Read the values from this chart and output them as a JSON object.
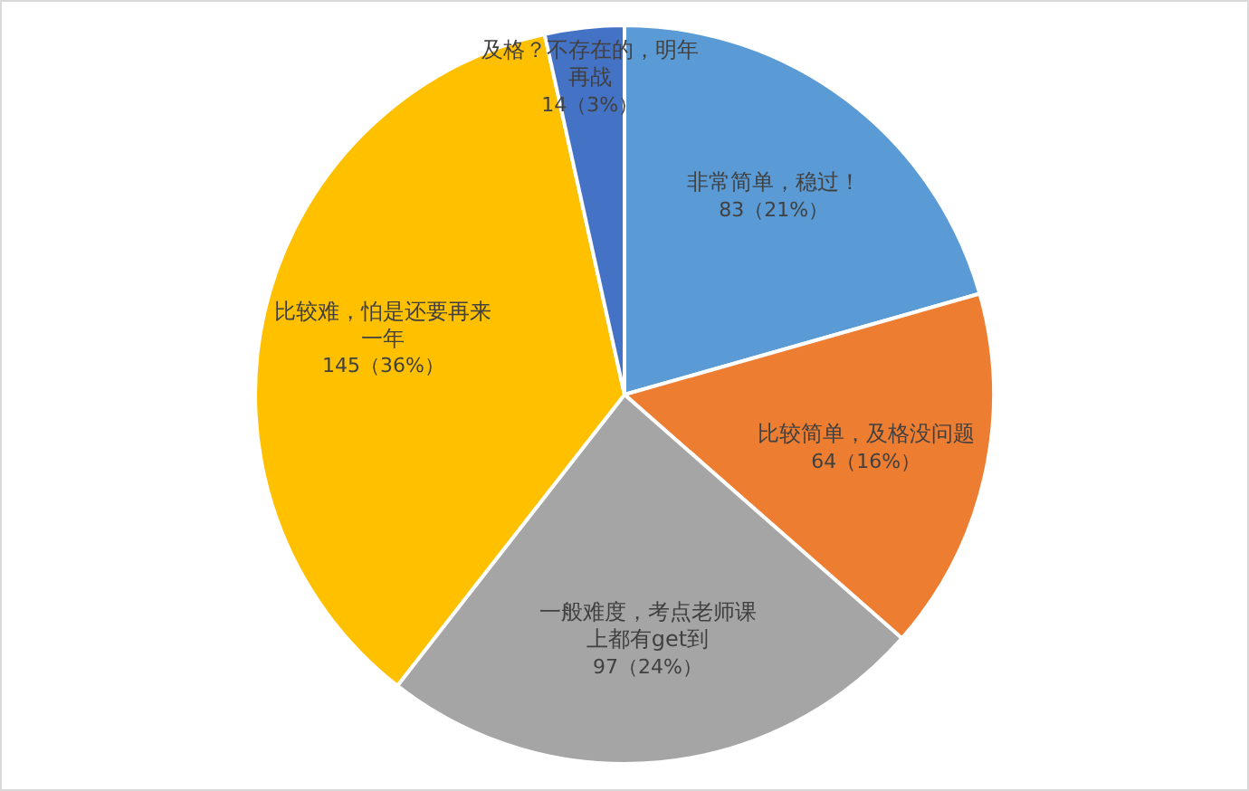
{
  "chart_data": {
    "type": "pie",
    "categories": [
      "非常简单，稳过！",
      "比较简单，及格没问题",
      "一般难度，考点老师课上都有get到",
      "比较难，怕是还要再来一年",
      "及格？不存在的，明年再战"
    ],
    "values": [
      83,
      64,
      97,
      145,
      14
    ],
    "value_labels": [
      "83（21%）",
      "64（16%）",
      "97（24%）",
      "145（36%）",
      "14（3%）"
    ],
    "colors": [
      "#5b9bd5",
      "#ed7d31",
      "#a5a5a5",
      "#ffc000",
      "#4472c4"
    ]
  }
}
